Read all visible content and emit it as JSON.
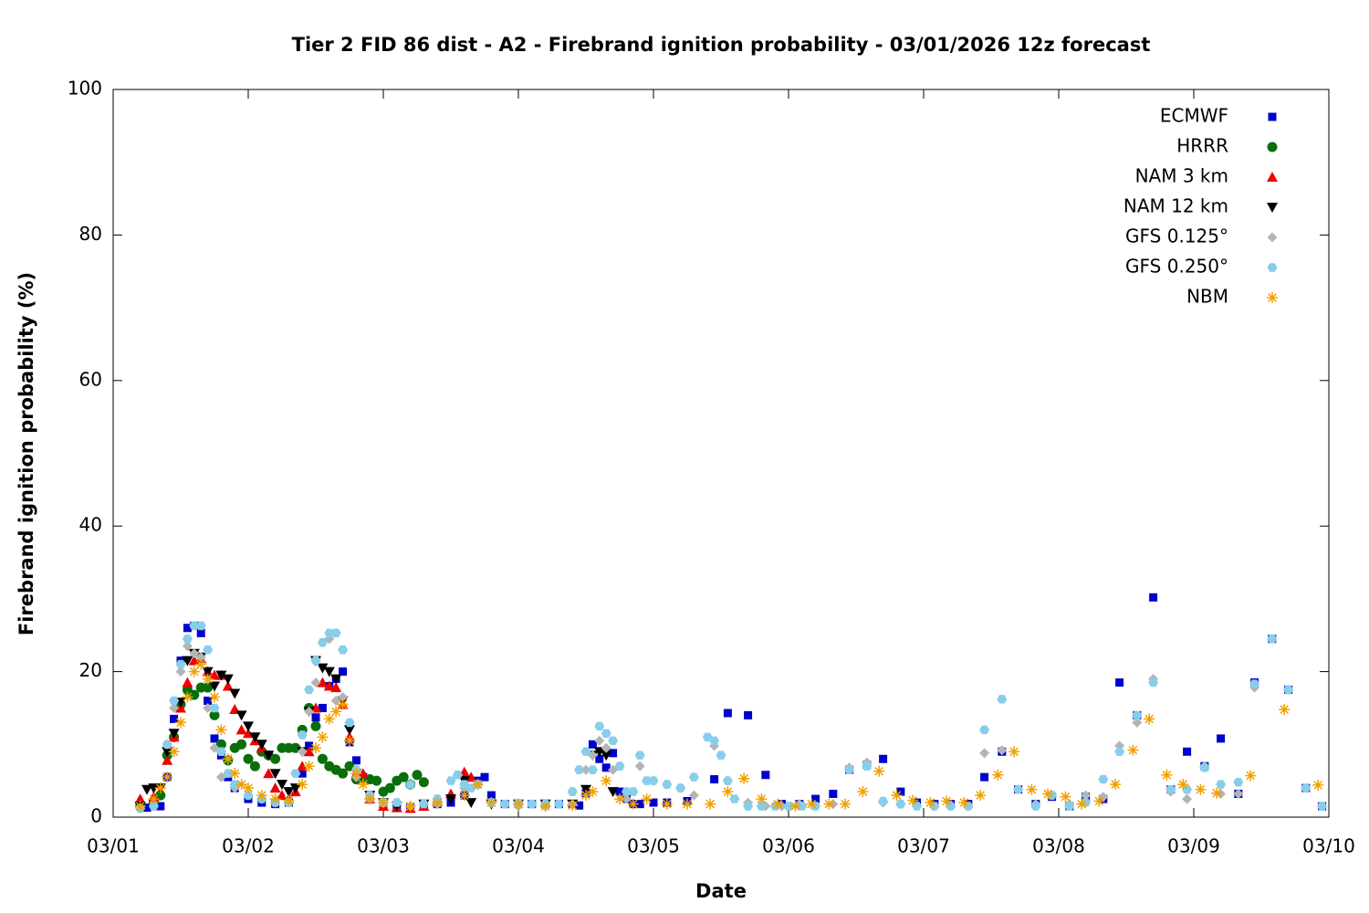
{
  "chart_data": {
    "type": "scatter",
    "title": "Tier 2 FID 86 dist - A2 - Firebrand ignition probability - 03/01/2026 12z forecast",
    "xlabel": "Date",
    "ylabel": "Firebrand ignition probability (%)",
    "xlim": [
      0,
      9
    ],
    "ylim": [
      0,
      100
    ],
    "xticks": [
      {
        "value": 0,
        "label": "03/01"
      },
      {
        "value": 1,
        "label": "03/02"
      },
      {
        "value": 2,
        "label": "03/03"
      },
      {
        "value": 3,
        "label": "03/04"
      },
      {
        "value": 4,
        "label": "03/05"
      },
      {
        "value": 5,
        "label": "03/06"
      },
      {
        "value": 6,
        "label": "03/07"
      },
      {
        "value": 7,
        "label": "03/08"
      },
      {
        "value": 8,
        "label": "03/09"
      },
      {
        "value": 9,
        "label": "03/10"
      }
    ],
    "yticks": [
      0,
      20,
      40,
      60,
      80,
      100
    ],
    "grid": false,
    "legend": "top-right",
    "series": [
      {
        "name": "ECMWF",
        "color": "#0000cc",
        "marker": "square",
        "x": [
          0.2,
          0.25,
          0.3,
          0.35,
          0.4,
          0.45,
          0.5,
          0.55,
          0.6,
          0.65,
          0.7,
          0.75,
          0.8,
          0.85,
          0.9,
          1.0,
          1.1,
          1.2,
          1.3,
          1.4,
          1.45,
          1.5,
          1.55,
          1.6,
          1.65,
          1.7,
          1.75,
          1.8,
          1.85,
          1.9,
          2.0,
          2.1,
          2.2,
          2.3,
          2.4,
          2.5,
          2.6,
          2.7,
          2.75,
          2.8,
          2.9,
          3.0,
          3.1,
          3.2,
          3.3,
          3.4,
          3.45,
          3.5,
          3.55,
          3.6,
          3.65,
          3.7,
          3.75,
          3.8,
          3.85,
          3.9,
          4.0,
          4.1,
          4.25,
          4.45,
          4.55,
          4.7,
          4.83,
          4.95,
          5.08,
          5.2,
          5.33,
          5.45,
          5.58,
          5.7,
          5.83,
          5.95,
          6.08,
          6.2,
          6.33,
          6.45,
          6.58,
          6.7,
          6.83,
          6.95,
          7.08,
          7.2,
          7.33,
          7.45,
          7.58,
          7.7,
          7.83,
          7.95,
          8.08,
          8.2,
          8.33,
          8.45,
          8.58,
          8.7,
          8.83,
          8.95
        ],
        "values": [
          1.5,
          1.3,
          1.5,
          1.5,
          5.5,
          13.5,
          21.5,
          26,
          26.3,
          25.3,
          16,
          10.8,
          8.5,
          5.5,
          4,
          2.5,
          2,
          1.8,
          2,
          6,
          9.8,
          13.7,
          15,
          18,
          19,
          20,
          10.3,
          7.8,
          5.5,
          3,
          1.8,
          1.5,
          1.3,
          1.5,
          1.8,
          2,
          3,
          5,
          5.5,
          3,
          1.8,
          1.8,
          1.8,
          1.8,
          1.8,
          1.8,
          1.6,
          3.3,
          10,
          8,
          6.8,
          8.8,
          3.5,
          2.5,
          1.8,
          1.8,
          2,
          2,
          2.2,
          5.2,
          14.3,
          14,
          5.8,
          1.8,
          1.8,
          2.5,
          3.2,
          6.5,
          7.2,
          8,
          3.5,
          2,
          1.8,
          1.8,
          1.8,
          5.5,
          9,
          3.8,
          1.8,
          2.8,
          1.5,
          2.8,
          2.5,
          18.5,
          14,
          30.2,
          3.8,
          9,
          7,
          10.8,
          3.2,
          18.5,
          24.5,
          17.5,
          4,
          1.5
        ]
      },
      {
        "name": "HRRR",
        "color": "#0a6e0a",
        "marker": "circle",
        "x": [
          0.2,
          0.3,
          0.35,
          0.4,
          0.45,
          0.5,
          0.55,
          0.6,
          0.65,
          0.7,
          0.75,
          0.8,
          0.85,
          0.9,
          0.95,
          1.0,
          1.05,
          1.1,
          1.15,
          1.2,
          1.25,
          1.3,
          1.35,
          1.4,
          1.45,
          1.5,
          1.55,
          1.6,
          1.65,
          1.7,
          1.75,
          1.8,
          1.85,
          1.9,
          1.95,
          2.0,
          2.05,
          2.1,
          2.15,
          2.2,
          2.25,
          2.3
        ],
        "values": [
          1.5,
          2,
          3,
          8.5,
          11,
          15.5,
          17.5,
          16.8,
          17.8,
          17.8,
          14,
          10,
          7.8,
          9.5,
          10,
          8,
          7,
          9,
          8.5,
          8,
          9.5,
          9.5,
          9.5,
          12,
          15,
          12.5,
          8,
          7,
          6.5,
          6,
          7,
          5.2,
          5.3,
          5.2,
          5,
          3.5,
          4,
          5,
          5.5,
          4.5,
          5.8,
          4.8
        ]
      },
      {
        "name": "NAM 3 km",
        "color": "#ee0000",
        "marker": "triangle-up",
        "x": [
          0.2,
          0.3,
          0.4,
          0.45,
          0.5,
          0.55,
          0.6,
          0.65,
          0.7,
          0.75,
          0.8,
          0.85,
          0.9,
          0.95,
          1.0,
          1.05,
          1.1,
          1.15,
          1.2,
          1.25,
          1.3,
          1.35,
          1.4,
          1.45,
          1.5,
          1.55,
          1.6,
          1.65,
          1.7,
          1.75,
          1.8,
          1.85,
          1.9,
          2.0,
          2.1,
          2.2,
          2.3,
          2.4,
          2.5,
          2.6,
          2.65
        ],
        "values": [
          2.5,
          2.8,
          7.8,
          11,
          15,
          18.5,
          21.5,
          21.8,
          20,
          19.5,
          19.5,
          18,
          14.8,
          12,
          11.5,
          10.5,
          9.5,
          6,
          4,
          3,
          2.5,
          3.5,
          7,
          9,
          15,
          18.5,
          18,
          17.8,
          15.5,
          11,
          6,
          6,
          2.5,
          1.5,
          1.3,
          1.2,
          1.5,
          2.2,
          3.2,
          6.2,
          5.5
        ]
      },
      {
        "name": "NAM 12 km",
        "color": "#000000",
        "marker": "triangle-down",
        "x": [
          0.2,
          0.25,
          0.3,
          0.35,
          0.4,
          0.45,
          0.5,
          0.55,
          0.6,
          0.65,
          0.7,
          0.75,
          0.8,
          0.85,
          0.9,
          0.95,
          1.0,
          1.05,
          1.1,
          1.15,
          1.2,
          1.25,
          1.3,
          1.35,
          1.4,
          1.45,
          1.5,
          1.55,
          1.6,
          1.65,
          1.7,
          1.75,
          1.8,
          1.9,
          2.0,
          2.1,
          2.3,
          2.5,
          2.6,
          2.65,
          2.8,
          3.0,
          3.2,
          3.4,
          3.5,
          3.55,
          3.6,
          3.65,
          3.7
        ],
        "values": [
          1.5,
          3.8,
          4,
          4,
          9,
          11.5,
          15.8,
          21.5,
          22.5,
          22,
          20,
          18,
          19.5,
          19,
          17,
          14,
          12.5,
          11,
          10,
          8.5,
          6,
          4.5,
          3.5,
          4,
          9,
          14.5,
          21.5,
          20.5,
          20,
          19,
          16,
          12,
          6,
          3,
          2,
          1.5,
          1.8,
          2.5,
          5,
          2,
          1.8,
          1.8,
          1.8,
          1.8,
          3.8,
          8.5,
          9,
          8.5,
          3.5
        ]
      },
      {
        "name": "GFS 0.125°",
        "color": "#b4b4b4",
        "marker": "diamond",
        "x": [
          0.2,
          0.3,
          0.4,
          0.45,
          0.5,
          0.55,
          0.6,
          0.65,
          0.7,
          0.75,
          0.8,
          0.9,
          1.0,
          1.1,
          1.2,
          1.3,
          1.4,
          1.45,
          1.5,
          1.55,
          1.6,
          1.65,
          1.7,
          1.8,
          1.9,
          2.0,
          2.2,
          2.4,
          2.6,
          2.8,
          3.0,
          3.2,
          3.4,
          3.5,
          3.55,
          3.6,
          3.65,
          3.7,
          3.8,
          3.9,
          4.0,
          4.1,
          4.2,
          4.3,
          4.45,
          4.55,
          4.7,
          4.83,
          4.95,
          5.08,
          5.2,
          5.33,
          5.45,
          5.58,
          5.7,
          5.83,
          5.95,
          6.08,
          6.2,
          6.33,
          6.45,
          6.58,
          6.7,
          6.83,
          6.95,
          7.08,
          7.2,
          7.33,
          7.45,
          7.58,
          7.7,
          7.83,
          7.95,
          8.08,
          8.2,
          8.33,
          8.45,
          8.58,
          8.7,
          8.83,
          8.95
        ],
        "values": [
          1.2,
          1.5,
          10,
          15,
          20,
          23.5,
          22.5,
          22,
          15,
          9.5,
          5.5,
          4,
          3,
          2.5,
          2,
          2,
          9,
          14.5,
          18.5,
          24,
          24.5,
          16,
          16.5,
          5.5,
          2.5,
          2,
          1.5,
          1.8,
          4,
          2,
          1.5,
          1.5,
          1.8,
          6.5,
          8.5,
          10.5,
          9.5,
          6.5,
          2.5,
          7,
          5,
          4.5,
          4,
          3,
          9.8,
          5,
          2,
          1.5,
          1.5,
          1.8,
          1.5,
          1.8,
          6.8,
          7.5,
          2,
          1.8,
          1.5,
          1.5,
          1.5,
          1.5,
          8.8,
          9.2,
          3.8,
          1.8,
          3,
          1.8,
          3,
          2.8,
          9.8,
          13,
          19,
          3.5,
          2.5,
          7,
          3.2,
          3.2,
          17.8,
          24.5,
          17.5,
          4,
          1.5
        ]
      },
      {
        "name": "GFS 0.250°",
        "color": "#87ceeb",
        "marker": "hexagon",
        "x": [
          0.2,
          0.3,
          0.4,
          0.45,
          0.5,
          0.55,
          0.6,
          0.65,
          0.7,
          0.75,
          0.8,
          0.85,
          0.9,
          1.0,
          1.1,
          1.2,
          1.3,
          1.35,
          1.4,
          1.45,
          1.5,
          1.55,
          1.6,
          1.65,
          1.7,
          1.75,
          1.8,
          1.9,
          2.0,
          2.1,
          2.2,
          2.3,
          2.4,
          2.5,
          2.55,
          2.6,
          2.65,
          2.7,
          2.8,
          2.9,
          3.0,
          3.1,
          3.2,
          3.3,
          3.4,
          3.45,
          3.5,
          3.55,
          3.6,
          3.65,
          3.7,
          3.75,
          3.8,
          3.85,
          3.9,
          3.95,
          4.0,
          4.1,
          4.2,
          4.3,
          4.4,
          4.45,
          4.5,
          4.55,
          4.6,
          4.7,
          4.8,
          4.9,
          5.0,
          5.1,
          5.2,
          5.45,
          5.58,
          5.7,
          5.83,
          5.95,
          6.08,
          6.2,
          6.33,
          6.45,
          6.58,
          6.7,
          6.83,
          6.95,
          7.08,
          7.2,
          7.33,
          7.45,
          7.58,
          7.7,
          7.83,
          7.95,
          8.08,
          8.2,
          8.33,
          8.45,
          8.58,
          8.7,
          8.83,
          8.95
        ],
        "values": [
          1.2,
          1.5,
          10,
          16,
          21,
          24.5,
          26.3,
          26.3,
          23,
          15,
          9,
          6,
          4.5,
          3,
          2.5,
          2,
          2,
          6,
          11.3,
          17.5,
          21.5,
          24,
          25.3,
          25.3,
          23,
          13,
          6.5,
          3,
          2,
          2,
          4.5,
          1.8,
          2.5,
          5,
          5.8,
          4.5,
          4,
          4.5,
          2,
          1.8,
          1.8,
          1.8,
          1.8,
          1.8,
          3.5,
          6.5,
          9,
          6.5,
          12.5,
          11.5,
          10.5,
          7,
          3.5,
          3.5,
          8.5,
          5,
          5,
          4.5,
          4,
          5.5,
          11,
          10.5,
          8.5,
          5,
          2.5,
          1.5,
          1.5,
          1.5,
          1.5,
          1.5,
          1.5,
          6.5,
          7,
          2.2,
          1.8,
          1.5,
          1.5,
          1.5,
          1.5,
          12,
          16.2,
          3.8,
          1.5,
          3,
          1.5,
          2,
          5.2,
          9,
          14,
          18.5,
          3.8,
          3.8,
          6.8,
          4.5,
          4.8,
          18.3,
          24.5,
          17.5,
          4,
          1.5
        ]
      },
      {
        "name": "NBM",
        "color": "#f0a000",
        "marker": "asterisk",
        "x": [
          0.2,
          0.3,
          0.35,
          0.4,
          0.45,
          0.5,
          0.55,
          0.6,
          0.65,
          0.7,
          0.75,
          0.8,
          0.85,
          0.9,
          0.95,
          1.0,
          1.1,
          1.2,
          1.3,
          1.4,
          1.45,
          1.5,
          1.55,
          1.6,
          1.65,
          1.7,
          1.75,
          1.8,
          1.85,
          1.9,
          2.0,
          2.2,
          2.4,
          2.6,
          2.7,
          2.8,
          3.0,
          3.2,
          3.4,
          3.5,
          3.55,
          3.65,
          3.75,
          3.85,
          3.95,
          4.1,
          4.25,
          4.42,
          4.55,
          4.67,
          4.8,
          4.92,
          5.05,
          5.17,
          5.3,
          5.42,
          5.55,
          5.67,
          5.8,
          5.92,
          6.05,
          6.17,
          6.3,
          6.42,
          6.55,
          6.67,
          6.8,
          6.92,
          7.05,
          7.17,
          7.3,
          7.42,
          7.55,
          7.67,
          7.8,
          7.92,
          8.05,
          8.17,
          8.42,
          8.67,
          8.92
        ],
        "values": [
          1.5,
          2.5,
          4,
          5.5,
          9,
          13,
          16.5,
          20,
          21,
          19,
          16.5,
          12,
          8,
          6,
          4.5,
          4,
          3,
          2.5,
          2.3,
          4.5,
          7,
          9.5,
          11,
          13.5,
          14.5,
          15.5,
          10.5,
          6,
          4.5,
          2.5,
          2,
          1.5,
          2,
          3,
          4.5,
          2,
          1.8,
          1.5,
          1.6,
          3,
          3.5,
          5,
          2.5,
          1.8,
          2.5,
          1.8,
          1.8,
          1.8,
          3.5,
          5.3,
          2.5,
          1.8,
          1.5,
          1.8,
          1.8,
          1.8,
          3.5,
          6.3,
          3,
          2.3,
          2,
          2.2,
          2,
          3,
          5.8,
          9,
          3.8,
          3.2,
          2.8,
          1.8,
          2.2,
          4.5,
          9.2,
          13.5,
          5.8,
          4.5,
          3.8,
          3.3,
          5.7,
          14.8,
          4.4
        ]
      }
    ]
  }
}
